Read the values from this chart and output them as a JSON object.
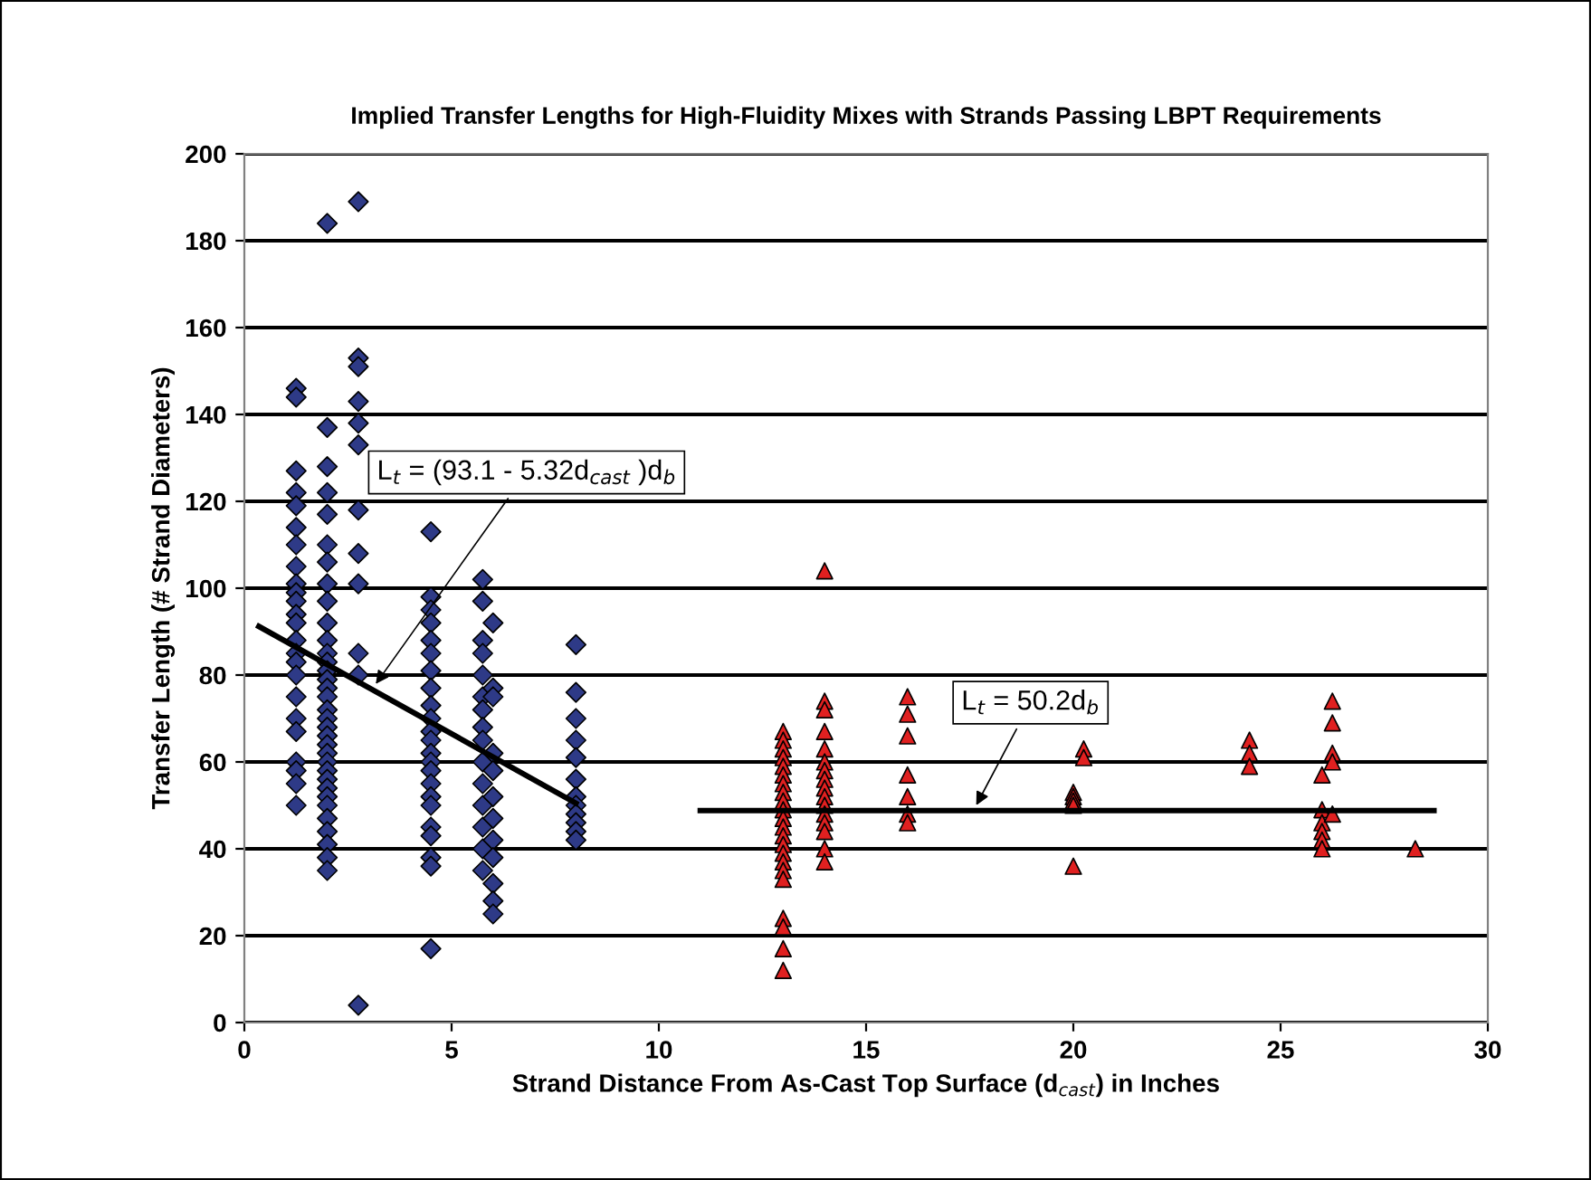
{
  "chart_data": {
    "type": "scatter",
    "title": "Implied Transfer Lengths for High-Fluidity Mixes with Strands Passing LBPT Requirements",
    "xlabel": "Strand Distance From As-Cast Top Surface (d$_{cast}$) in Inches",
    "ylabel": "Transfer Length (# Strand Diameters)",
    "xlim": [
      0,
      30
    ],
    "xticks": [
      0,
      5,
      10,
      15,
      20,
      25,
      30
    ],
    "ylim": [
      0,
      200
    ],
    "yticks": [
      0,
      20,
      40,
      60,
      80,
      100,
      120,
      140,
      160,
      180,
      200
    ],
    "grid": "y",
    "legend": false,
    "series": [
      {
        "marker": "diamond",
        "color": "#2e3a87",
        "x": [
          1.25,
          1.25,
          1.25,
          1.25,
          1.25,
          1.25,
          1.25,
          1.25,
          1.25,
          1.25,
          1.25,
          1.25,
          1.25,
          1.25,
          1.25,
          1.25,
          1.25,
          1.25,
          1.25,
          1.25,
          1.25,
          1.25,
          1.25,
          1.25,
          2,
          2,
          2,
          2,
          2,
          2,
          2,
          2,
          2,
          2,
          2,
          2,
          2,
          2,
          2,
          2,
          2,
          2,
          2,
          2,
          2,
          2,
          2,
          2,
          2,
          2,
          2,
          2,
          2,
          2,
          2,
          2,
          2,
          2,
          2.75,
          2.75,
          2.75,
          2.75,
          2.75,
          2.75,
          2.75,
          2.75,
          2.75,
          2.75,
          2.75,
          2.75,
          4.5,
          4.5,
          4.5,
          4.5,
          4.5,
          4.5,
          4.5,
          4.5,
          4.5,
          4.5,
          4.5,
          4.5,
          4.5,
          4.5,
          4.5,
          4.5,
          4.5,
          4.5,
          4.5,
          4.5,
          4.5,
          4.5,
          4.5,
          5.75,
          5.75,
          5.75,
          5.75,
          5.75,
          5.75,
          5.75,
          5.75,
          5.75,
          5.75,
          5.75,
          5.75,
          5.75,
          5.75,
          5.75,
          6,
          6,
          6,
          6,
          6,
          6,
          6,
          6,
          6,
          6,
          6,
          6,
          8,
          8,
          8,
          8,
          8,
          8,
          8,
          8,
          8,
          8,
          8,
          8
        ],
        "values": [
          146,
          144,
          127,
          122,
          119,
          114,
          110,
          105,
          101,
          99,
          97,
          94,
          92,
          88,
          85,
          83,
          80,
          75,
          70,
          67,
          60,
          58,
          55,
          50,
          184,
          137,
          128,
          122,
          117,
          110,
          106,
          101,
          97,
          92,
          88,
          85,
          83,
          81,
          79,
          77,
          75,
          72,
          70,
          68,
          66,
          64,
          62,
          60,
          58,
          56,
          54,
          52,
          50,
          47,
          44,
          41,
          38,
          35,
          189,
          153,
          151,
          143,
          138,
          133,
          118,
          108,
          101,
          85,
          80,
          4,
          113,
          98,
          95,
          92,
          88,
          85,
          81,
          77,
          73,
          70,
          67,
          65,
          62,
          60,
          58,
          55,
          52,
          50,
          45,
          43,
          38,
          36,
          17,
          102,
          97,
          88,
          85,
          80,
          75,
          72,
          68,
          65,
          60,
          55,
          50,
          45,
          40,
          35,
          92,
          77,
          75,
          62,
          58,
          52,
          47,
          42,
          38,
          32,
          28,
          25,
          87,
          76,
          70,
          65,
          61,
          56,
          52,
          50,
          48,
          46,
          44,
          42
        ]
      },
      {
        "marker": "triangle",
        "color": "#e02020",
        "x": [
          13,
          13,
          13,
          13,
          13,
          13,
          13,
          13,
          13,
          13,
          13,
          13,
          13,
          13,
          13,
          13,
          13,
          13,
          13,
          13,
          13,
          13,
          14,
          14,
          14,
          14,
          14,
          14,
          14,
          14,
          14,
          14,
          14,
          14,
          14,
          14,
          14,
          14,
          16,
          16,
          16,
          16,
          16,
          16,
          16,
          20,
          20,
          20,
          20,
          20,
          20.25,
          20.25,
          24.25,
          24.25,
          24.25,
          26,
          26,
          26,
          26,
          26,
          26,
          26.25,
          26.25,
          26.25,
          26.25,
          26.25,
          28.25
        ],
        "values": [
          67,
          65,
          63,
          61,
          59,
          57,
          55,
          53,
          51,
          49,
          47,
          45,
          43,
          41,
          39,
          37,
          35,
          33,
          24,
          22,
          17,
          12,
          104,
          74,
          72,
          67,
          63,
          60,
          58,
          56,
          54,
          52,
          50,
          48,
          46,
          44,
          40,
          37,
          75,
          71,
          66,
          57,
          52,
          48,
          46,
          53,
          52,
          51,
          50,
          36,
          63,
          61,
          65,
          62,
          59,
          57,
          49,
          46,
          44,
          42,
          40,
          74,
          69,
          62,
          60,
          48,
          40
        ]
      },
      {
        "type": "line",
        "marker": "none",
        "color": "#000000",
        "x": [
          0.35,
          8
        ],
        "values": [
          91.2,
          50.5
        ]
      },
      {
        "type": "line",
        "marker": "none",
        "color": "#000000",
        "x": [
          11,
          28.7
        ],
        "values": [
          48.8,
          48.8
        ]
      }
    ],
    "annotations": [
      {
        "text": "L$_{t}$ = (93.1 - 5.32d$_{cast}$ )d$_{b}$",
        "x": 3.1,
        "y": 77
      },
      {
        "text": "L$_{t}$ = 50.2d$_{b}$",
        "x": 17.6,
        "y": 49
      }
    ]
  }
}
